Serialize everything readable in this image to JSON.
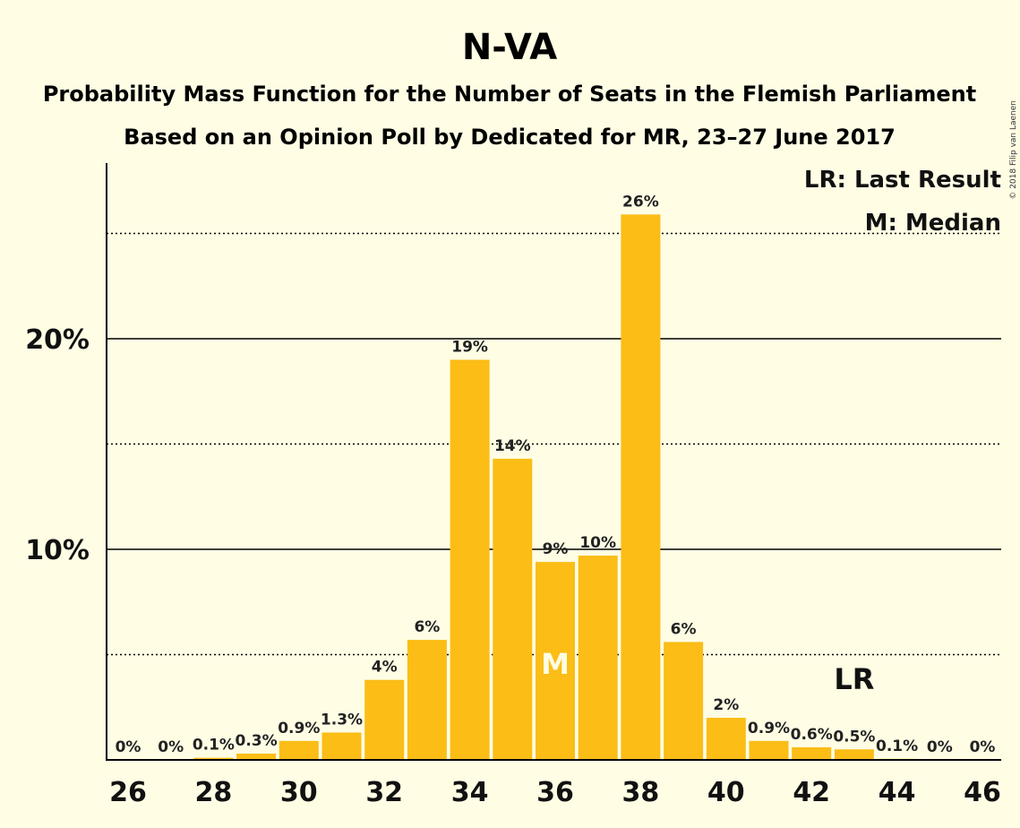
{
  "chart_data": {
    "type": "bar",
    "title": "N-VA",
    "subtitle_1": "Probability Mass Function for the Number of Seats in the Flemish Parliament",
    "subtitle_2": "Based on an Opinion Poll by Dedicated for MR, 23–27 June 2017",
    "copyright": "© 2018 Filip van Laenen",
    "legend": {
      "lr": "LR: Last Result",
      "m": "M: Median"
    },
    "ylim": [
      0,
      28
    ],
    "y_solid_lines": [
      10,
      20
    ],
    "y_dotted_lines": [
      5,
      15,
      25
    ],
    "y_tick_labels": [
      "10%",
      "20%"
    ],
    "x_tick_labels": [
      "26",
      "28",
      "30",
      "32",
      "34",
      "36",
      "38",
      "40",
      "42",
      "44",
      "46"
    ],
    "x_tick_values": [
      26,
      28,
      30,
      32,
      34,
      36,
      38,
      40,
      42,
      44,
      46
    ],
    "categories": [
      26,
      27,
      28,
      29,
      30,
      31,
      32,
      33,
      34,
      35,
      36,
      37,
      38,
      39,
      40,
      41,
      42,
      43,
      44,
      45,
      46
    ],
    "values": [
      0,
      0,
      0.1,
      0.3,
      0.9,
      1.3,
      3.8,
      5.7,
      19.0,
      14.3,
      9.4,
      9.7,
      25.9,
      5.6,
      2.0,
      0.9,
      0.6,
      0.5,
      0.05,
      0,
      0
    ],
    "labels": [
      "0%",
      "0%",
      "0.1%",
      "0.3%",
      "0.9%",
      "1.3%",
      "4%",
      "6%",
      "19%",
      "14%",
      "9%",
      "10%",
      "26%",
      "6%",
      "2%",
      "0.9%",
      "0.6%",
      "0.5%",
      "0.1%",
      "0%",
      "0%"
    ],
    "median_seat": 36,
    "median_marker": "M",
    "last_result_seat": 43,
    "last_result_marker": "LR",
    "colors": {
      "bar": "#fbbd16",
      "background": "#fffde4",
      "median_text": "#fffde4"
    }
  }
}
